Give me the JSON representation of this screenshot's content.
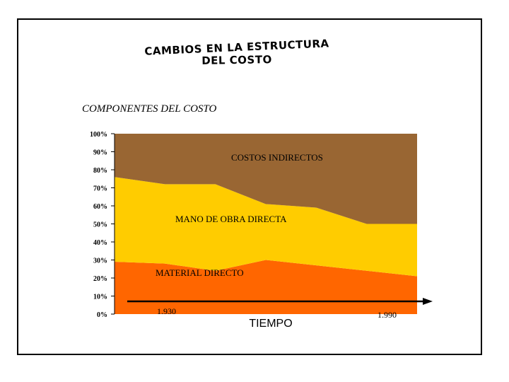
{
  "title_line1": "CAMBIOS EN LA ESTRUCTURA",
  "title_line2": "DEL COSTO",
  "subtitle": "COMPONENTES DEL COSTO",
  "chart_data": {
    "type": "area",
    "stacked": true,
    "x": [
      "1930",
      "",
      "",
      "",
      "",
      "",
      "1990"
    ],
    "y_ticks": [
      "0%",
      "10%",
      "20%",
      "30%",
      "40%",
      "50%",
      "60%",
      "70%",
      "80%",
      "90%",
      "100%"
    ],
    "ylim": [
      0,
      100
    ],
    "grid": false,
    "series": [
      {
        "name": "MATERIAL DIRECTO",
        "values": [
          29,
          28,
          24,
          30,
          27,
          24,
          21
        ],
        "color": "#FF6600"
      },
      {
        "name": "MANO DE OBRA DIRECTA",
        "values": [
          47,
          44,
          48,
          31,
          32,
          26,
          29
        ],
        "color": "#FFCC00"
      },
      {
        "name": "COSTOS INDIRECTOS",
        "values": [
          24,
          28,
          28,
          39,
          41,
          50,
          50
        ],
        "color": "#996633"
      }
    ],
    "x_start_label": "1.930",
    "x_end_label": "1.990",
    "arrow_label": "TIEMPO"
  }
}
